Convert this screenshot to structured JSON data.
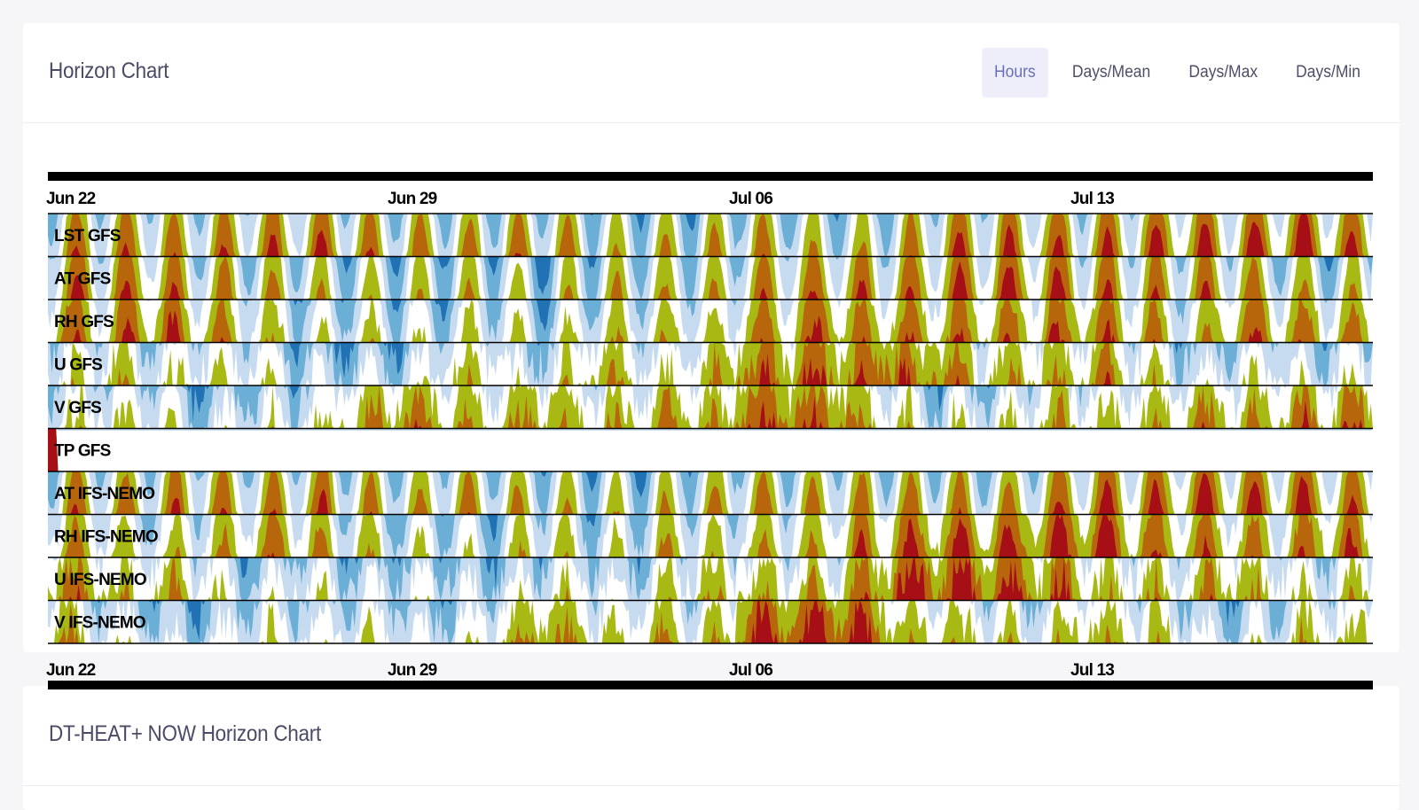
{
  "header": {
    "title": "Horizon Chart"
  },
  "tabs": [
    {
      "label": "Hours",
      "active": true
    },
    {
      "label": "Days/Mean",
      "active": false
    },
    {
      "label": "Days/Max",
      "active": false
    },
    {
      "label": "Days/Min",
      "active": false
    }
  ],
  "second_card": {
    "title": "DT-HEAT+ NOW Horizon Chart"
  },
  "colors": {
    "negative_bands": [
      "#c6dbef",
      "#6baed6",
      "#2171b5"
    ],
    "positive_bands": [
      "#a8b914",
      "#b8660c",
      "#a50f15"
    ]
  },
  "chart_data": {
    "type": "horizon",
    "x_start": "2024-06-22",
    "x_end": "2024-07-19",
    "x_ticks": [
      "Jun 22",
      "Jun 29",
      "Jul 06",
      "Jul 13"
    ],
    "bands": 3,
    "series": [
      {
        "name": "LST GFS",
        "pattern": "diurnal"
      },
      {
        "name": "AT GFS",
        "pattern": "diurnal"
      },
      {
        "name": "RH GFS",
        "pattern": "mixed"
      },
      {
        "name": "U GFS",
        "pattern": "wind"
      },
      {
        "name": "V GFS",
        "pattern": "wind"
      },
      {
        "name": "TP GFS",
        "pattern": "precip"
      },
      {
        "name": "AT IFS-NEMO",
        "pattern": "diurnal"
      },
      {
        "name": "RH IFS-NEMO",
        "pattern": "mixed"
      },
      {
        "name": "U IFS-NEMO",
        "pattern": "wind"
      },
      {
        "name": "V IFS-NEMO",
        "pattern": "wind"
      }
    ]
  }
}
